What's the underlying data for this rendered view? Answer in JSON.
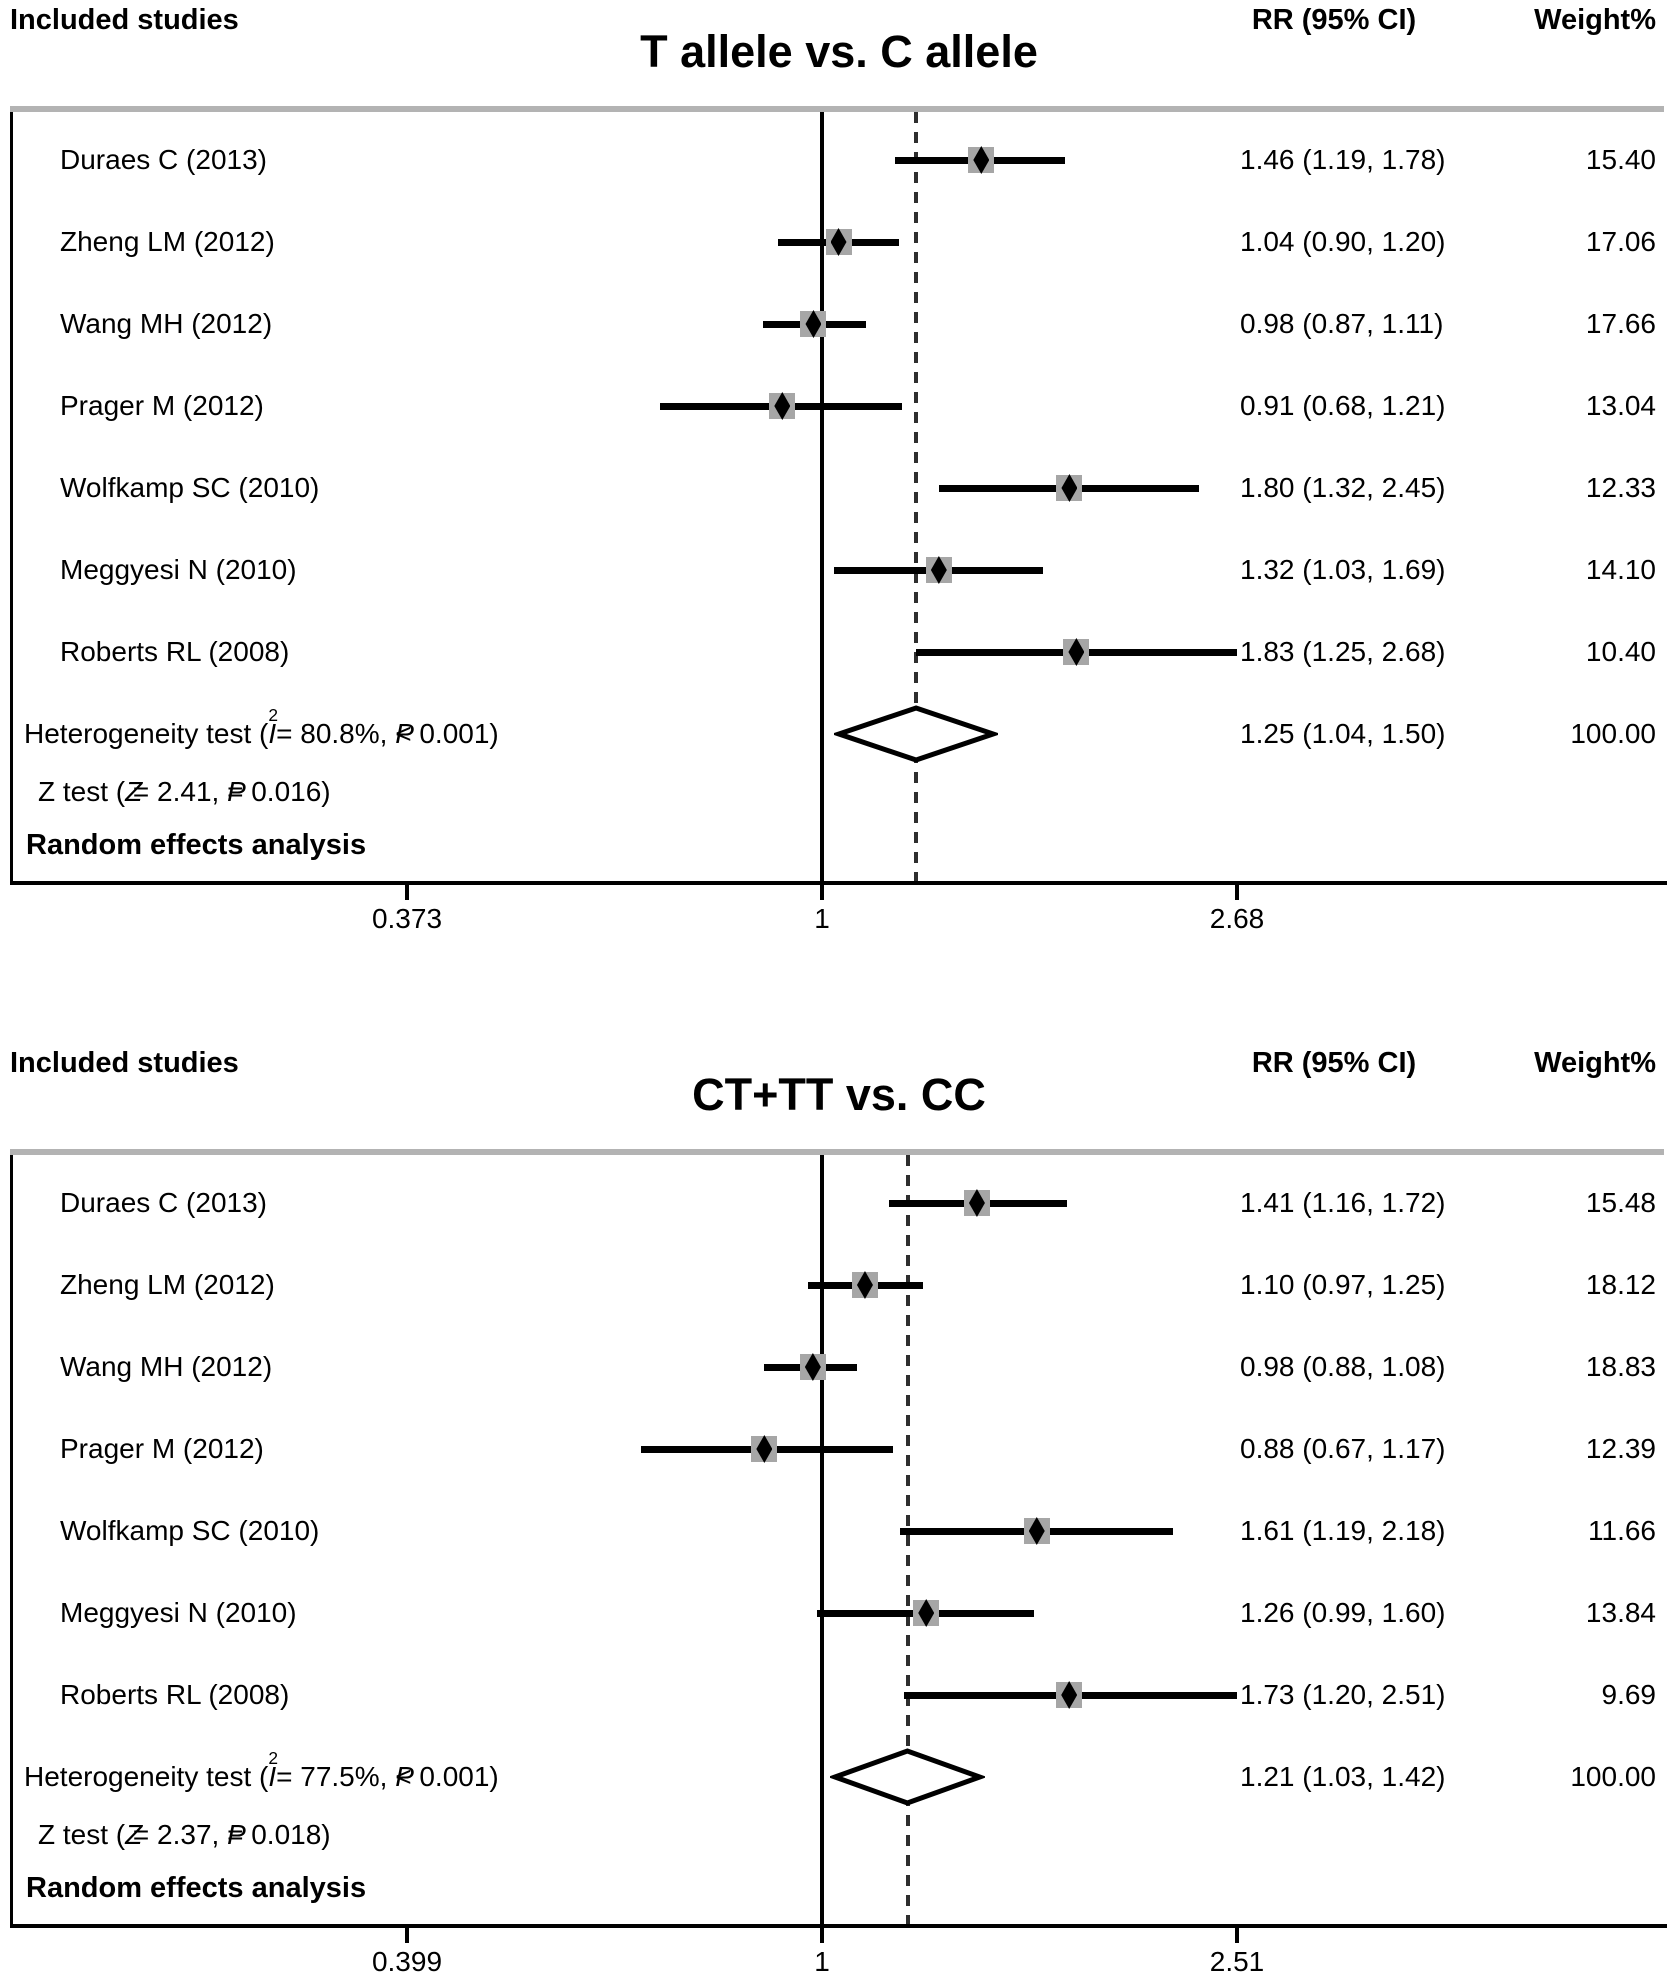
{
  "page": {
    "background": "#ffffff",
    "text_color": "#000000",
    "rule_color": "#b3b3b3",
    "marker_square_color": "#a6a6a6",
    "line_color": "#000000"
  },
  "chart_data": [
    {
      "type": "forest_plot",
      "title": "T allele vs. C allele",
      "effect_measure": "RR",
      "model_label": "Random effects analysis",
      "columns": {
        "studies": "Included studies",
        "rr": "RR (95% CI)",
        "weight": "Weight%"
      },
      "x_axis": {
        "scale": "log",
        "tick_labels": [
          "0.373",
          "1",
          "2.68"
        ],
        "tick_values": [
          0.373,
          1,
          2.68
        ],
        "reference_line": 1,
        "dashed_line_at": 1.25,
        "legend": "none",
        "grid": false
      },
      "studies": [
        {
          "name": "Duraes C (2013)",
          "rr": 1.46,
          "ci_low": 1.19,
          "ci_high": 1.78,
          "weight_pct": "15.40"
        },
        {
          "name": "Zheng LM (2012)",
          "rr": 1.04,
          "ci_low": 0.9,
          "ci_high": 1.2,
          "weight_pct": "17.06"
        },
        {
          "name": "Wang MH (2012)",
          "rr": 0.98,
          "ci_low": 0.87,
          "ci_high": 1.11,
          "weight_pct": "17.66"
        },
        {
          "name": "Prager M (2012)",
          "rr": 0.91,
          "ci_low": 0.68,
          "ci_high": 1.21,
          "weight_pct": "13.04"
        },
        {
          "name": "Wolfkamp SC (2010)",
          "rr": 1.8,
          "ci_low": 1.32,
          "ci_high": 2.45,
          "weight_pct": "12.33"
        },
        {
          "name": "Meggyesi N (2010)",
          "rr": 1.32,
          "ci_low": 1.03,
          "ci_high": 1.69,
          "weight_pct": "14.10"
        },
        {
          "name": "Roberts RL (2008)",
          "rr": 1.83,
          "ci_low": 1.25,
          "ci_high": 2.68,
          "weight_pct": "10.40"
        }
      ],
      "pooled": {
        "rr": 1.25,
        "ci_low": 1.04,
        "ci_high": 1.5,
        "weight_pct": "100.00"
      },
      "heterogeneity_segments": [
        "Heterogeneity test (",
        {
          "i": "I"
        },
        {
          "sup": "2"
        },
        " = 80.8%, ",
        {
          "i": "P"
        },
        " < 0.001)"
      ],
      "z_test_segments": [
        "Z test (",
        {
          "i": "Z"
        },
        " = 2.41, ",
        {
          "i": "P"
        },
        " = 0.016)"
      ]
    },
    {
      "type": "forest_plot",
      "title": "CT+TT vs. CC",
      "effect_measure": "RR",
      "model_label": "Random effects analysis",
      "columns": {
        "studies": "Included studies",
        "rr": "RR (95% CI)",
        "weight": "Weight%"
      },
      "x_axis": {
        "scale": "log",
        "tick_labels": [
          "0.399",
          "1",
          "2.51"
        ],
        "tick_values": [
          0.399,
          1,
          2.51
        ],
        "reference_line": 1,
        "dashed_line_at": 1.21,
        "legend": "none",
        "grid": false
      },
      "studies": [
        {
          "name": "Duraes C (2013)",
          "rr": 1.41,
          "ci_low": 1.16,
          "ci_high": 1.72,
          "weight_pct": "15.48"
        },
        {
          "name": "Zheng LM (2012)",
          "rr": 1.1,
          "ci_low": 0.97,
          "ci_high": 1.25,
          "weight_pct": "18.12"
        },
        {
          "name": "Wang MH (2012)",
          "rr": 0.98,
          "ci_low": 0.88,
          "ci_high": 1.08,
          "weight_pct": "18.83"
        },
        {
          "name": "Prager M (2012)",
          "rr": 0.88,
          "ci_low": 0.67,
          "ci_high": 1.17,
          "weight_pct": "12.39"
        },
        {
          "name": "Wolfkamp SC (2010)",
          "rr": 1.61,
          "ci_low": 1.19,
          "ci_high": 2.18,
          "weight_pct": "11.66"
        },
        {
          "name": "Meggyesi N (2010)",
          "rr": 1.26,
          "ci_low": 0.99,
          "ci_high": 1.6,
          "weight_pct": "13.84"
        },
        {
          "name": "Roberts RL (2008)",
          "rr": 1.73,
          "ci_low": 1.2,
          "ci_high": 2.51,
          "weight_pct": "9.69"
        }
      ],
      "pooled": {
        "rr": 1.21,
        "ci_low": 1.03,
        "ci_high": 1.42,
        "weight_pct": "100.00"
      },
      "heterogeneity_segments": [
        "Heterogeneity test (",
        {
          "i": "I"
        },
        {
          "sup": "2"
        },
        " = 77.5%, ",
        {
          "i": "P"
        },
        " < 0.001)"
      ],
      "z_test_segments": [
        "Z test (",
        {
          "i": "Z"
        },
        " = 2.37, ",
        {
          "i": "P"
        },
        " = 0.018)"
      ]
    }
  ]
}
